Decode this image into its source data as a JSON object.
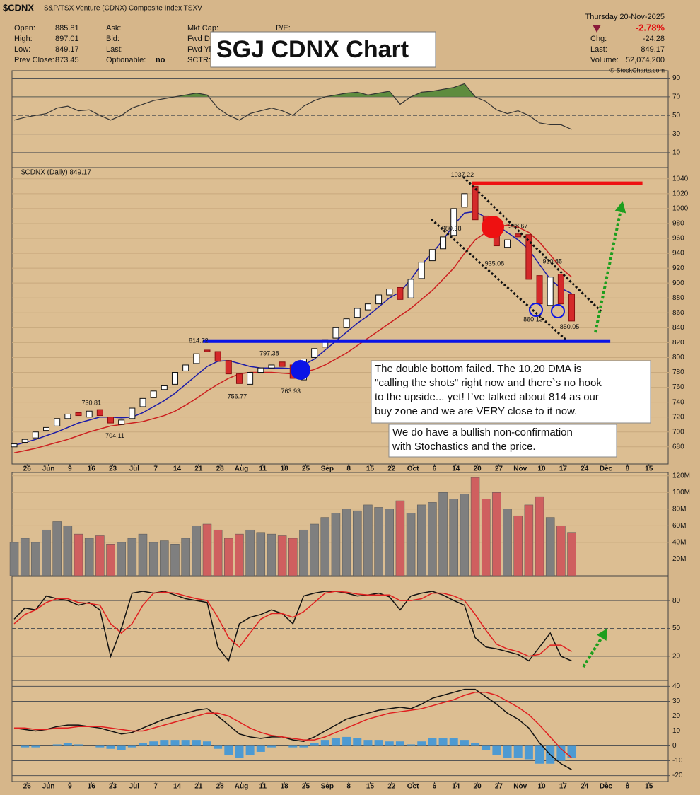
{
  "header": {
    "symbol": "$CDNX",
    "name": "S&P/TSX Venture (CDNX) Composite Index TSXV",
    "date": "Thursday 20-Nov-2025",
    "copyright": "© StockCharts.com",
    "overlay_title": "SGJ CDNX Chart",
    "left": [
      [
        "Open:",
        "885.81"
      ],
      [
        "High:",
        "897.01"
      ],
      [
        "Low:",
        "849.17"
      ],
      [
        "Prev Close:",
        "873.45"
      ]
    ],
    "mid": [
      "Ask:",
      "Bid:",
      "Last:",
      "Optionable:"
    ],
    "optionable": "no",
    "mid2": [
      "Mkt Cap:",
      "Fwd Div",
      "Fwd Yi",
      "SCTR:"
    ],
    "pe": "P/E:",
    "change": "-2.78%",
    "right": [
      [
        "Chg:",
        "-24.28"
      ],
      [
        "Last:",
        "849.17"
      ],
      [
        "Volume:",
        "52,074,200"
      ]
    ]
  },
  "chart_data": {
    "type": "stock-panels",
    "x": [
      -0.6,
      -0.1,
      0.4,
      0.9,
      1.4,
      1.9,
      2.4,
      2.9,
      3.4,
      3.9,
      4.4,
      4.9,
      5.4,
      5.9,
      6.4,
      6.9,
      7.4,
      7.9,
      8.4,
      8.9,
      9.4,
      9.9,
      10.4,
      10.9,
      11.4,
      11.9,
      12.4,
      12.9,
      13.4,
      13.9,
      14.4,
      14.9,
      15.4,
      15.9,
      16.4,
      16.9,
      17.4,
      17.9,
      18.4,
      18.9,
      19.4,
      19.9,
      20.4,
      20.9,
      21.4,
      21.9,
      22.4,
      22.9,
      23.4,
      23.9,
      24.4,
      24.9,
      25.4
    ],
    "xlim": [
      -0.7,
      29.9
    ],
    "xticks": [
      {
        "value": 0,
        "label": "26"
      },
      {
        "value": 1,
        "label": "Jun"
      },
      {
        "value": 2,
        "label": "9"
      },
      {
        "value": 3,
        "label": "16"
      },
      {
        "value": 4,
        "label": "23"
      },
      {
        "value": 5,
        "label": "Jul"
      },
      {
        "value": 6,
        "label": "7"
      },
      {
        "value": 7,
        "label": "14"
      },
      {
        "value": 8,
        "label": "21"
      },
      {
        "value": 9,
        "label": "28"
      },
      {
        "value": 10,
        "label": "Aug"
      },
      {
        "value": 11,
        "label": "11"
      },
      {
        "value": 12,
        "label": "18"
      },
      {
        "value": 13,
        "label": "25"
      },
      {
        "value": 14,
        "label": "Sep"
      },
      {
        "value": 15,
        "label": "8"
      },
      {
        "value": 16,
        "label": "15"
      },
      {
        "value": 17,
        "label": "22"
      },
      {
        "value": 18,
        "label": "Oct"
      },
      {
        "value": 19,
        "label": "6"
      },
      {
        "value": 20,
        "label": "14"
      },
      {
        "value": 21,
        "label": "20"
      },
      {
        "value": 22,
        "label": "27"
      },
      {
        "value": 23,
        "label": "Nov"
      },
      {
        "value": 24,
        "label": "10"
      },
      {
        "value": 25,
        "label": "17"
      },
      {
        "value": 26,
        "label": "24"
      },
      {
        "value": 27,
        "label": "Dec"
      },
      {
        "value": 28,
        "label": "8"
      },
      {
        "value": 29,
        "label": "15"
      }
    ],
    "panels": [
      {
        "type": "rsi",
        "ylim": [
          -6,
          98
        ],
        "yticks": [
          10,
          30,
          50,
          70,
          90
        ],
        "fill_above": 70,
        "color": "#333333",
        "fill": "#5e8c3e",
        "values": [
          45,
          48,
          50,
          52,
          58,
          60,
          55,
          56,
          50,
          45,
          50,
          58,
          62,
          66,
          68,
          70,
          72,
          74,
          72,
          58,
          50,
          45,
          52,
          55,
          58,
          55,
          50,
          60,
          66,
          70,
          72,
          74,
          75,
          72,
          74,
          76,
          62,
          70,
          75,
          76,
          78,
          80,
          84,
          70,
          65,
          56,
          52,
          55,
          50,
          42,
          40,
          40,
          35
        ]
      },
      {
        "type": "candlestick",
        "label": "$CDNX (Daily) 849.17",
        "ylim": [
          657,
          1055
        ],
        "yticks": [
          680,
          700,
          720,
          740,
          760,
          780,
          800,
          820,
          840,
          860,
          880,
          900,
          920,
          940,
          960,
          980,
          1000,
          1020,
          1040
        ],
        "up_color": "#ffffff",
        "down_color": "#d42a2a",
        "open": [
          680,
          686,
          692,
          702,
          708,
          718,
          726,
          720,
          730,
          720,
          710,
          718,
          734,
          746,
          757,
          764,
          782,
          792,
          810,
          808,
          796,
          778,
          764,
          780,
          786,
          794,
          790,
          770,
          800,
          814,
          826,
          840,
          854,
          864,
          872,
          884,
          894,
          880,
          906,
          930,
          946,
          964,
          1002,
          1030,
          990,
          975,
          948,
          966,
          965,
          910,
          870,
          912,
          885
        ],
        "close": [
          684,
          690,
          700,
          706,
          718,
          724,
          722,
          728,
          722,
          712,
          716,
          732,
          745,
          755,
          762,
          780,
          790,
          805,
          808,
          795,
          778,
          765,
          780,
          786,
          790,
          788,
          772,
          798,
          812,
          824,
          840,
          852,
          866,
          872,
          884,
          892,
          878,
          905,
          928,
          945,
          962,
          1000,
          1020,
          985,
          972,
          950,
          958,
          962,
          905,
          872,
          908,
          872,
          849
        ],
        "series": [
          {
            "color": "#1a1aa8",
            "values": [
              682,
              686,
              690,
              695,
              700,
              706,
              712,
              716,
              720,
              720,
              719,
              720,
              726,
              734,
              742,
              752,
              764,
              776,
              788,
              795,
              796,
              792,
              788,
              786,
              786,
              786,
              785,
              790,
              798,
              810,
              822,
              834,
              846,
              856,
              868,
              880,
              888,
              905,
              925,
              940,
              958,
              978,
              994,
              996,
              988,
              978,
              968,
              958,
              945,
              925,
              905,
              893,
              886
            ]
          },
          {
            "color": "#cc1f1f",
            "values": [
              672,
              675,
              678,
              682,
              686,
              690,
              695,
              700,
              704,
              708,
              710,
              712,
              714,
              718,
              722,
              728,
              736,
              745,
              755,
              764,
              772,
              778,
              780,
              780,
              780,
              779,
              778,
              780,
              784,
              790,
              798,
              806,
              816,
              826,
              836,
              846,
              856,
              866,
              878,
              890,
              905,
              920,
              940,
              958,
              968,
              975,
              978,
              975,
              968,
              955,
              938,
              920,
              908
            ]
          }
        ],
        "annotations": [
          {
            "x": 20.3,
            "value": 1037.22
          },
          {
            "x": 19.8,
            "value": 980.38
          },
          {
            "x": 22.9,
            "value": 968.67
          },
          {
            "x": 21.8,
            "value": 935.08
          },
          {
            "x": 24.5,
            "value": 920.85
          },
          {
            "x": 23.6,
            "value": 860.13
          },
          {
            "x": 25.3,
            "value": 850.05
          },
          {
            "x": 8.0,
            "value": 814.72
          },
          {
            "x": 11.3,
            "value": 797.38
          },
          {
            "x": 9.8,
            "value": 756.77
          },
          {
            "x": 12.3,
            "value": 763.93
          },
          {
            "x": 3.0,
            "value": 730.81
          },
          {
            "x": 4.1,
            "value": 704.11
          }
        ],
        "hlines": [
          {
            "value": 822,
            "x": [
              8.2,
              27.2
            ],
            "color": "#0a14e6"
          },
          {
            "value": 1034,
            "x": [
              20.75,
              28.7
            ],
            "color": "#ee1111"
          }
        ],
        "notes": [
          {
            "lines": [
              "The double bottom failed.  The 10,20 DMA is",
              "\"calling the shots\" right now and there`s no hook",
              "to the upside... yet!  I`ve talked about 814 as our",
              "buy zone and we are VERY close to it now."
            ]
          },
          {
            "lines": [
              "We do have a bullish non-confirmation",
              "with Stochastics and the price."
            ]
          }
        ]
      },
      {
        "type": "volume",
        "ylim": [
          0,
          124000000
        ],
        "yticks": [
          {
            "value": 20000000,
            "label": "20M"
          },
          {
            "value": 40000000,
            "label": "40M"
          },
          {
            "value": 60000000,
            "label": "60M"
          },
          {
            "value": 80000000,
            "label": "80M"
          },
          {
            "value": 100000000,
            "label": "100M"
          },
          {
            "value": 120000000,
            "label": "120M"
          }
        ],
        "up_color": "#7f7f7f",
        "down_color": "#cf5f5f",
        "values": [
          40000000,
          45000000,
          40000000,
          55000000,
          65000000,
          60000000,
          50000000,
          45000000,
          48000000,
          38000000,
          40000000,
          45000000,
          50000000,
          40000000,
          42000000,
          38000000,
          45000000,
          60000000,
          62000000,
          55000000,
          45000000,
          50000000,
          55000000,
          52000000,
          50000000,
          48000000,
          45000000,
          55000000,
          62000000,
          70000000,
          75000000,
          80000000,
          78000000,
          85000000,
          82000000,
          80000000,
          90000000,
          75000000,
          85000000,
          88000000,
          100000000,
          92000000,
          98000000,
          118000000,
          92000000,
          100000000,
          80000000,
          72000000,
          85000000,
          95000000,
          70000000,
          60000000,
          52074200
        ]
      },
      {
        "type": "stochastic",
        "ylim": [
          -6,
          106
        ],
        "yticks": [
          20,
          50,
          80
        ],
        "series": [
          {
            "color": "#111111",
            "values": [
              60,
              72,
              70,
              85,
              82,
              80,
              75,
              78,
              70,
              20,
              50,
              88,
              90,
              88,
              90,
              86,
              82,
              80,
              78,
              30,
              15,
              55,
              62,
              65,
              70,
              66,
              55,
              85,
              88,
              90,
              90,
              88,
              85,
              86,
              88,
              84,
              70,
              85,
              88,
              90,
              86,
              80,
              75,
              40,
              30,
              28,
              25,
              22,
              15,
              30,
              45,
              20,
              15
            ]
          },
          {
            "color": "#e02020",
            "values": [
              55,
              65,
              70,
              78,
              82,
              82,
              78,
              77,
              75,
              55,
              45,
              55,
              75,
              88,
              89,
              88,
              85,
              82,
              80,
              62,
              40,
              30,
              45,
              60,
              66,
              66,
              62,
              68,
              78,
              88,
              90,
              89,
              87,
              86,
              86,
              86,
              80,
              80,
              82,
              88,
              88,
              85,
              80,
              65,
              48,
              33,
              28,
              25,
              20,
              22,
              32,
              32,
              25
            ]
          }
        ]
      },
      {
        "type": "macd",
        "ylim": [
          -24,
          44
        ],
        "yticks": [
          -20,
          -10,
          0,
          10,
          20,
          30,
          40
        ],
        "hist_color": "#4d9ad2",
        "histogram": [
          0,
          -1,
          -1,
          0,
          1,
          2,
          1,
          0,
          -1,
          -2,
          -3,
          -1,
          2,
          3,
          4,
          4,
          4,
          4,
          3,
          -2,
          -6,
          -8,
          -6,
          -4,
          -1,
          0,
          -1,
          -1,
          2,
          4,
          5,
          6,
          5,
          4,
          4,
          3,
          3,
          1,
          3,
          5,
          5,
          5,
          4,
          2,
          -3,
          -6,
          -8,
          -8,
          -9,
          -12,
          -12,
          -10,
          -8
        ],
        "series": [
          {
            "color": "#111111",
            "values": [
              12,
              11,
              10,
              11,
              13,
              14,
              14,
              13,
              12,
              10,
              8,
              9,
              12,
              15,
              18,
              20,
              22,
              24,
              25,
              20,
              14,
              8,
              6,
              5,
              6,
              6,
              4,
              3,
              6,
              10,
              14,
              18,
              20,
              22,
              24,
              25,
              26,
              25,
              28,
              32,
              34,
              36,
              38,
              38,
              33,
              28,
              22,
              18,
              12,
              2,
              -6,
              -12,
              -16
            ]
          },
          {
            "color": "#e02020",
            "values": [
              12,
              12,
              11,
              11,
              12,
              12,
              13,
              13,
              13,
              12,
              11,
              10,
              10,
              12,
              14,
              16,
              18,
              20,
              22,
              22,
              20,
              16,
              12,
              9,
              7,
              6,
              5,
              4,
              4,
              6,
              9,
              12,
              15,
              18,
              20,
              22,
              23,
              24,
              25,
              27,
              29,
              31,
              34,
              36,
              36,
              34,
              30,
              26,
              21,
              14,
              6,
              -2,
              -8
            ]
          }
        ]
      }
    ]
  }
}
